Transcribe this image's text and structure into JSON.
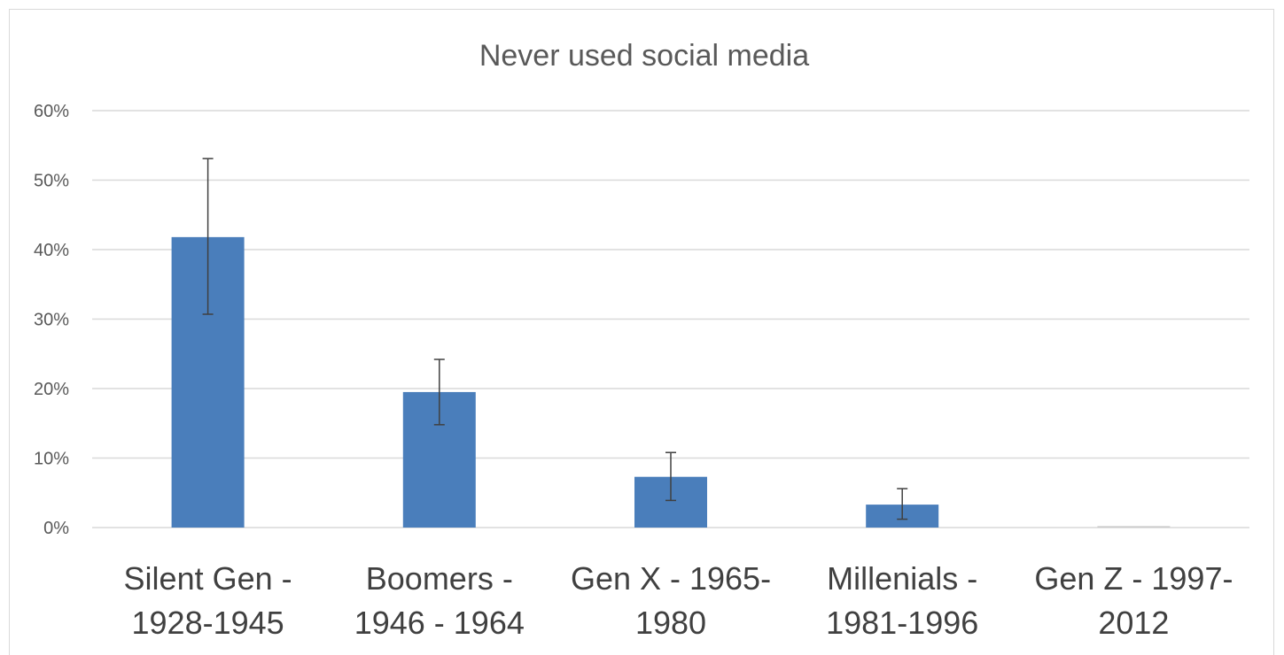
{
  "chart_data": {
    "type": "bar",
    "title": "Never used social media",
    "categories": [
      [
        "Silent Gen -",
        "1928-1945"
      ],
      [
        "Boomers -",
        "1946 - 1964"
      ],
      [
        "Gen X - 1965-",
        "1980"
      ],
      [
        "Millenials -",
        "1981-1996"
      ],
      [
        "Gen Z - 1997-",
        "2012"
      ]
    ],
    "values": [
      41.8,
      19.5,
      7.3,
      3.3,
      0.0
    ],
    "error_plus": [
      11.3,
      4.7,
      3.5,
      2.3,
      0.0
    ],
    "error_minus": [
      11.1,
      4.7,
      3.4,
      2.1,
      0.0
    ],
    "ylim": [
      0,
      60
    ],
    "yticks": [
      "0%",
      "10%",
      "20%",
      "30%",
      "40%",
      "50%",
      "60%"
    ],
    "ytick_values": [
      0,
      10,
      20,
      30,
      40,
      50,
      60
    ],
    "grid": true,
    "bar_color": "#4a7ebb",
    "grid_color": "#d9d9d9",
    "error_color": "#404040"
  }
}
